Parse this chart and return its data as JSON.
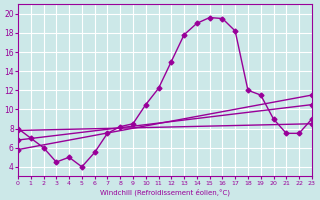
{
  "xlabel": "Windchill (Refroidissement éolien,°C)",
  "background_color": "#cce8e8",
  "grid_color": "#ffffff",
  "line_color": "#990099",
  "xlim": [
    0,
    23
  ],
  "ylim": [
    3,
    21
  ],
  "yticks": [
    4,
    6,
    8,
    10,
    12,
    14,
    16,
    18,
    20
  ],
  "xticks": [
    0,
    1,
    2,
    3,
    4,
    5,
    6,
    7,
    8,
    9,
    10,
    11,
    12,
    13,
    14,
    15,
    16,
    17,
    18,
    19,
    20,
    21,
    22,
    23
  ],
  "curve1_x": [
    0,
    1,
    2,
    3,
    4,
    5,
    6,
    7,
    8,
    9,
    10,
    11,
    12,
    13,
    14,
    15,
    16,
    17,
    18,
    19,
    20,
    21,
    22,
    23
  ],
  "curve1_y": [
    8.0,
    7.0,
    6.0,
    4.5,
    5.0,
    4.0,
    5.5,
    7.5,
    8.2,
    8.5,
    10.5,
    12.2,
    15.0,
    17.8,
    19.0,
    19.6,
    19.5,
    18.2,
    12.0,
    11.5,
    9.0,
    7.5,
    7.5,
    9.0
  ],
  "curve2_x": [
    0,
    23
  ],
  "curve2_y": [
    7.8,
    8.5
  ],
  "curve3_x": [
    0,
    23
  ],
  "curve3_y": [
    6.8,
    10.5
  ],
  "curve4_x": [
    0,
    23
  ],
  "curve4_y": [
    5.8,
    11.5
  ],
  "marker": "D",
  "markersize": 2.5,
  "linewidth": 1.0
}
